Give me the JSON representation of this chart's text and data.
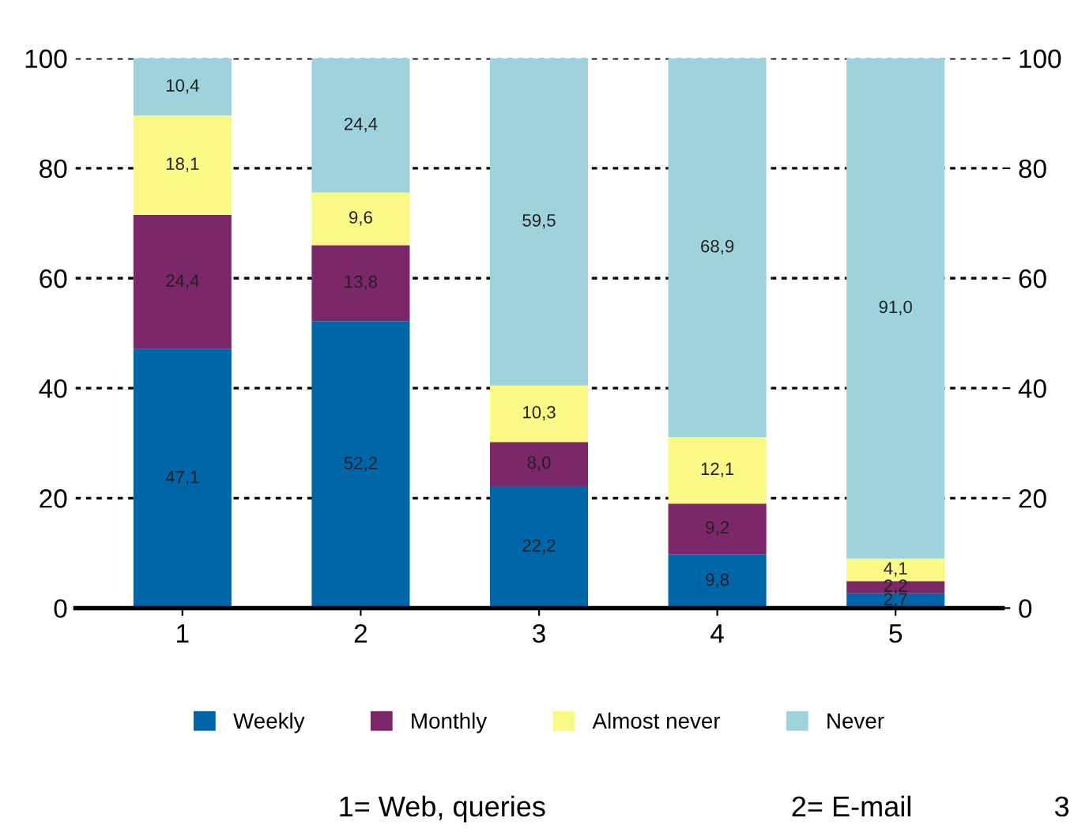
{
  "chart_data": {
    "type": "bar",
    "stacked": true,
    "categories": [
      "1",
      "2",
      "3",
      "4",
      "5"
    ],
    "series": [
      {
        "name": "Weekly",
        "color": "#0066aa",
        "values": [
          47.1,
          52.2,
          22.2,
          9.8,
          2.7
        ],
        "value_labels": [
          "47,1",
          "52,2",
          "22,2",
          "9,8",
          "2,7"
        ]
      },
      {
        "name": "Monthly",
        "color": "#7b2769",
        "values": [
          24.4,
          13.8,
          8.0,
          9.2,
          2.2
        ],
        "value_labels": [
          "24,4",
          "13,8",
          "8,0",
          "9,2",
          "2,2"
        ]
      },
      {
        "name": "Almost never",
        "color": "#fbf985",
        "values": [
          18.1,
          9.6,
          10.3,
          12.1,
          4.1
        ],
        "value_labels": [
          "18,1",
          "9,6",
          "10,3",
          "12,1",
          "4,1"
        ]
      },
      {
        "name": "Never",
        "color": "#9ed2dc",
        "values": [
          10.4,
          24.4,
          59.5,
          68.9,
          91.0
        ],
        "value_labels": [
          "10,4",
          "24,4",
          "59,5",
          "68,9",
          "91,0"
        ]
      }
    ],
    "ylim": [
      0,
      100
    ],
    "yticks": [
      0,
      20,
      40,
      60,
      80,
      100
    ],
    "y2lim": [
      0,
      100
    ],
    "y2ticks": [
      0,
      20,
      40,
      60,
      80,
      100
    ],
    "grid": "y",
    "legend": "bottom",
    "annotations": [
      "1= Web, queries",
      "2= E-mail",
      "3"
    ]
  }
}
